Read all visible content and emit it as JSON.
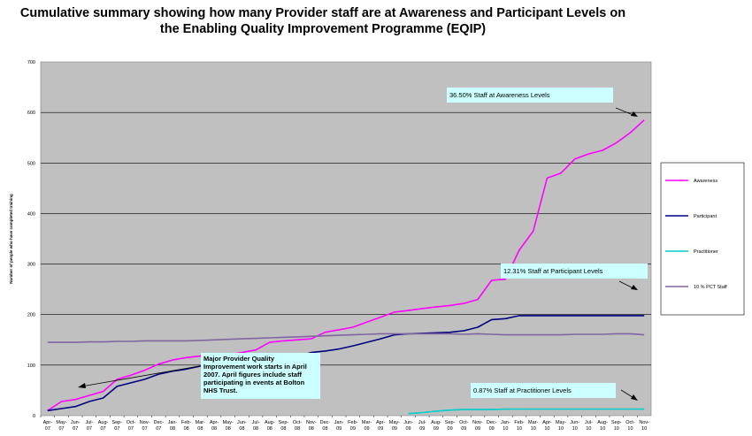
{
  "title_line1": "Cumulative summary showing how many Provider staff are at Awareness and Participant Levels on",
  "title_line2": "the Enabling Quality Improvement Programme (EQIP)",
  "chart_data": {
    "type": "line",
    "ylabel": "Number of people who have completed training",
    "ylim": [
      0,
      700
    ],
    "yticks": [
      0,
      100,
      200,
      300,
      400,
      500,
      600,
      700
    ],
    "grid": true,
    "legend_position": "right",
    "categories": [
      "Apr-07",
      "May-07",
      "Jun-07",
      "Jul-07",
      "Aug-07",
      "Sep-07",
      "Oct-07",
      "Nov-07",
      "Dec-07",
      "Jan-08",
      "Feb-08",
      "Mar-08",
      "Apr-08",
      "May-08",
      "Jun-08",
      "Jul-08",
      "Aug-08",
      "Sep-08",
      "Oct-08",
      "Nov-08",
      "Dec-08",
      "Jan-09",
      "Feb-09",
      "Mar-09",
      "Apr-09",
      "May-09",
      "Jun-09",
      "Jul-09",
      "Aug-09",
      "Sep-09",
      "Oct-09",
      "Nov-09",
      "Dec-09",
      "Jan-10",
      "Feb-10",
      "Mar-10",
      "Apr-10",
      "May-10",
      "Jun-10",
      "Jul-10",
      "Aug-10",
      "Sep-10",
      "Oct-10",
      "Nov-10"
    ],
    "series": [
      {
        "name": "Awareness",
        "color": "#ff00ff",
        "values": [
          10,
          28,
          32,
          40,
          48,
          72,
          80,
          90,
          102,
          110,
          115,
          118,
          118,
          120,
          125,
          130,
          145,
          148,
          150,
          152,
          165,
          170,
          175,
          185,
          195,
          205,
          208,
          212,
          215,
          218,
          222,
          230,
          268,
          270,
          328,
          365,
          470,
          480,
          508,
          518,
          525,
          540,
          560,
          585
        ]
      },
      {
        "name": "Participant",
        "color": "#000080",
        "values": [
          10,
          14,
          18,
          28,
          35,
          58,
          65,
          72,
          82,
          88,
          92,
          98,
          100,
          100,
          102,
          105,
          108,
          112,
          118,
          125,
          128,
          132,
          138,
          145,
          152,
          160,
          162,
          163,
          164,
          165,
          168,
          175,
          190,
          192,
          198,
          198,
          198,
          198,
          198,
          198,
          198,
          198,
          198,
          198
        ]
      },
      {
        "name": "Practitioner",
        "color": "#00cccc",
        "values": [
          null,
          null,
          null,
          null,
          null,
          null,
          null,
          null,
          null,
          null,
          null,
          null,
          null,
          null,
          null,
          null,
          null,
          null,
          null,
          null,
          null,
          null,
          null,
          null,
          null,
          null,
          4,
          6,
          9,
          11,
          12,
          12,
          12,
          13,
          13,
          13,
          13,
          13,
          13,
          13,
          13,
          13,
          13,
          13
        ]
      },
      {
        "name": "10 % PCT Staff",
        "color": "#8066a0",
        "values": [
          145,
          145,
          145,
          146,
          146,
          147,
          147,
          148,
          148,
          148,
          148,
          149,
          150,
          151,
          152,
          153,
          154,
          155,
          156,
          157,
          158,
          159,
          160,
          161,
          162,
          162,
          162,
          162,
          162,
          162,
          161,
          162,
          161,
          160,
          160,
          160,
          160,
          160,
          161,
          161,
          161,
          162,
          162,
          160
        ]
      }
    ],
    "annotations": [
      {
        "text": "36.50% Staff  at Awareness Levels"
      },
      {
        "text": "12.31% Staff  at Participant Levels"
      },
      {
        "text": "0.87% Staff at Practitioner Levels"
      },
      {
        "lines": [
          "Major Provider Quality",
          "Improvement work starts in April",
          "2007.  April figures include staff",
          "participating in events at Bolton",
          "NHS Trust."
        ]
      }
    ]
  }
}
